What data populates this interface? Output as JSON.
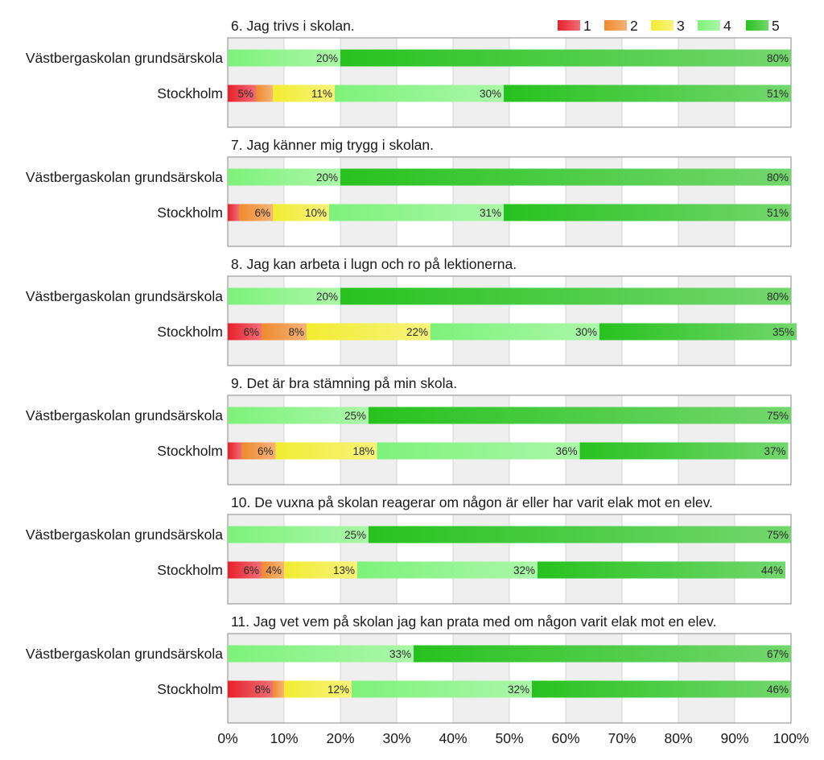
{
  "chart_data": {
    "type": "bar",
    "orientation": "horizontal",
    "stacked": true,
    "xlim": [
      0,
      100
    ],
    "x_ticks": [
      "0%",
      "10%",
      "20%",
      "30%",
      "40%",
      "50%",
      "60%",
      "70%",
      "80%",
      "90%",
      "100%"
    ],
    "grid": true,
    "legend_position": "top-right",
    "legend": [
      "1",
      "2",
      "3",
      "4",
      "5"
    ],
    "colors": {
      "1": "#e8202b",
      "2": "#ef8a2e",
      "3": "#f2ec32",
      "4": "#7df27a",
      "5": "#27c21f"
    },
    "categories": [
      "Västbergaskolan grundsärskola",
      "Stockholm"
    ],
    "panels": [
      {
        "title": "6. Jag trivs i skolan.",
        "rows": [
          {
            "label": "Västbergaskolan grundsärskola",
            "values": [
              0,
              0,
              0,
              20,
              80
            ],
            "labels": [
              "",
              "",
              "",
              "20%",
              "80%"
            ]
          },
          {
            "label": "Stockholm",
            "values": [
              5,
              3,
              11,
              30,
              51
            ],
            "labels": [
              "5%",
              "",
              "11%",
              "30%",
              "51%"
            ]
          }
        ]
      },
      {
        "title": "7. Jag känner mig trygg i skolan.",
        "rows": [
          {
            "label": "Västbergaskolan grundsärskola",
            "values": [
              0,
              0,
              0,
              20,
              80
            ],
            "labels": [
              "",
              "",
              "",
              "20%",
              "80%"
            ]
          },
          {
            "label": "Stockholm",
            "values": [
              2,
              6,
              10,
              31,
              51
            ],
            "labels": [
              "",
              "6%",
              "10%",
              "31%",
              "51%"
            ]
          }
        ]
      },
      {
        "title": "8. Jag kan arbeta i lugn och ro på lektionerna.",
        "rows": [
          {
            "label": "Västbergaskolan grundsärskola",
            "values": [
              0,
              0,
              0,
              20,
              80
            ],
            "labels": [
              "",
              "",
              "",
              "20%",
              "80%"
            ]
          },
          {
            "label": "Stockholm",
            "values": [
              6,
              8,
              22,
              30,
              35
            ],
            "labels": [
              "6%",
              "8%",
              "22%",
              "30%",
              "35%"
            ]
          }
        ]
      },
      {
        "title": "9. Det är bra stämning på min skola.",
        "rows": [
          {
            "label": "Västbergaskolan grundsärskola",
            "values": [
              0,
              0,
              0,
              25,
              75
            ],
            "labels": [
              "",
              "",
              "",
              "25%",
              "75%"
            ]
          },
          {
            "label": "Stockholm",
            "values": [
              2.5,
              6,
              18,
              36,
              37
            ],
            "labels": [
              "",
              "6%",
              "18%",
              "36%",
              "37%"
            ]
          }
        ]
      },
      {
        "title": "10. De vuxna på skolan reagerar om någon är eller har varit elak mot en elev.",
        "rows": [
          {
            "label": "Västbergaskolan grundsärskola",
            "values": [
              0,
              0,
              0,
              25,
              75
            ],
            "labels": [
              "",
              "",
              "",
              "25%",
              "75%"
            ]
          },
          {
            "label": "Stockholm",
            "values": [
              6,
              4,
              13,
              32,
              44
            ],
            "labels": [
              "6%",
              "4%",
              "13%",
              "32%",
              "44%"
            ]
          }
        ]
      },
      {
        "title": "11. Jag vet vem på skolan jag kan prata med om någon varit elak mot en elev.",
        "rows": [
          {
            "label": "Västbergaskolan grundsärskola",
            "values": [
              0,
              0,
              0,
              33,
              67
            ],
            "labels": [
              "",
              "",
              "",
              "33%",
              "67%"
            ]
          },
          {
            "label": "Stockholm",
            "values": [
              8,
              2,
              12,
              32,
              46
            ],
            "labels": [
              "8%",
              "",
              "12%",
              "32%",
              "46%"
            ]
          }
        ]
      }
    ]
  }
}
